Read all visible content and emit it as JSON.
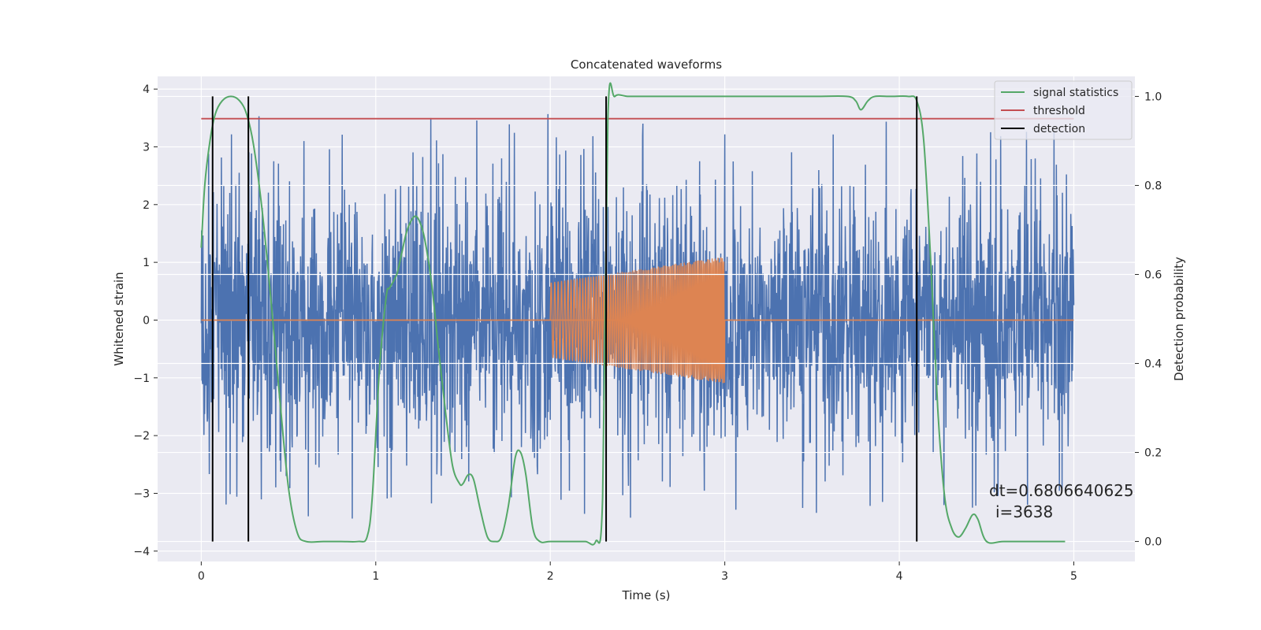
{
  "chart_data": {
    "type": "line",
    "title": "Concatenated waveforms",
    "xlabel": "Time (s)",
    "ylabel": "Whitened strain",
    "y2label": "Detection probability",
    "xlim": [
      -0.25,
      5.35
    ],
    "ylim": [
      -4.18,
      4.22
    ],
    "y2lim": [
      -0.045,
      1.045
    ],
    "xticks": [
      0,
      1,
      2,
      3,
      4,
      5
    ],
    "xtick_labels": [
      "0",
      "1",
      "2",
      "3",
      "4",
      "5"
    ],
    "yticks": [
      4,
      3,
      2,
      1,
      0,
      -1,
      -2,
      -3,
      -4
    ],
    "ytick_labels": [
      "4",
      "3",
      "2",
      "1",
      "0",
      "−1",
      "−2",
      "−3",
      "−4"
    ],
    "y2ticks": [
      1.0,
      0.8,
      0.6,
      0.4,
      0.2,
      0.0
    ],
    "y2tick_labels": [
      "1.0",
      "0.8",
      "0.6",
      "0.4",
      "0.2",
      "0.0"
    ],
    "grid": true,
    "legend_position": "top-right",
    "noise": {
      "name": "whitened strain",
      "color": "#4c72b0",
      "t_start": 0,
      "t_end": 5,
      "typical_amplitude": 1.4,
      "peak_amplitude": 3.5,
      "seed": 3638
    },
    "injection": {
      "color": "#dd8452",
      "t_start": 2.0,
      "t_end": 3.0,
      "amplitude_start": 0.65,
      "amplitude_end": 1.1,
      "zero_line": [
        0,
        5
      ]
    },
    "signal_statistics": {
      "name": "signal statistics",
      "color": "#55a868",
      "x": [
        0.0,
        0.02,
        0.05,
        0.08,
        0.12,
        0.17,
        0.22,
        0.26,
        0.3,
        0.35,
        0.4,
        0.45,
        0.5,
        0.55,
        0.6,
        0.7,
        0.8,
        0.9,
        0.95,
        0.98,
        1.02,
        1.06,
        1.08,
        1.12,
        1.15,
        1.18,
        1.22,
        1.25,
        1.28,
        1.32,
        1.36,
        1.4,
        1.44,
        1.48,
        1.5,
        1.53,
        1.56,
        1.6,
        1.64,
        1.68,
        1.72,
        1.76,
        1.8,
        1.83,
        1.86,
        1.9,
        1.94,
        2.0,
        2.1,
        2.2,
        2.26,
        2.3,
        2.33,
        2.37,
        2.45,
        2.6,
        3.0,
        3.5,
        3.7,
        3.75,
        3.78,
        3.82,
        3.86,
        3.95,
        4.05,
        4.1,
        4.14,
        4.18,
        4.22,
        4.26,
        4.3,
        4.34,
        4.38,
        4.42,
        4.45,
        4.5,
        4.6,
        4.8,
        4.95
      ],
      "values": [
        0.66,
        0.8,
        0.9,
        0.96,
        0.99,
        1.0,
        0.99,
        0.96,
        0.89,
        0.74,
        0.54,
        0.32,
        0.12,
        0.02,
        0.0,
        0.0,
        0.0,
        0.0,
        0.01,
        0.1,
        0.38,
        0.55,
        0.57,
        0.6,
        0.65,
        0.7,
        0.73,
        0.72,
        0.68,
        0.58,
        0.43,
        0.29,
        0.17,
        0.13,
        0.13,
        0.15,
        0.14,
        0.07,
        0.01,
        0.0,
        0.01,
        0.08,
        0.19,
        0.2,
        0.15,
        0.03,
        0.0,
        0.0,
        0.0,
        0.0,
        0.0,
        0.1,
        0.95,
        1.0,
        1.0,
        1.0,
        1.0,
        1.0,
        1.0,
        0.99,
        0.97,
        0.99,
        1.0,
        1.0,
        1.0,
        0.99,
        0.9,
        0.63,
        0.3,
        0.1,
        0.03,
        0.01,
        0.03,
        0.06,
        0.05,
        0.0,
        0.0,
        0.0,
        0.0
      ]
    },
    "threshold": {
      "name": "threshold",
      "color": "#c44e52",
      "value": 0.95,
      "x_range": [
        0,
        5
      ]
    },
    "detections": {
      "name": "detection",
      "color": "#000000",
      "times": [
        0.065,
        0.27,
        2.32,
        4.1
      ]
    },
    "annotation": {
      "line1": "dt=0.6806640625",
      "line2": "i=3638",
      "x": 4.5,
      "y": 0.11
    }
  }
}
